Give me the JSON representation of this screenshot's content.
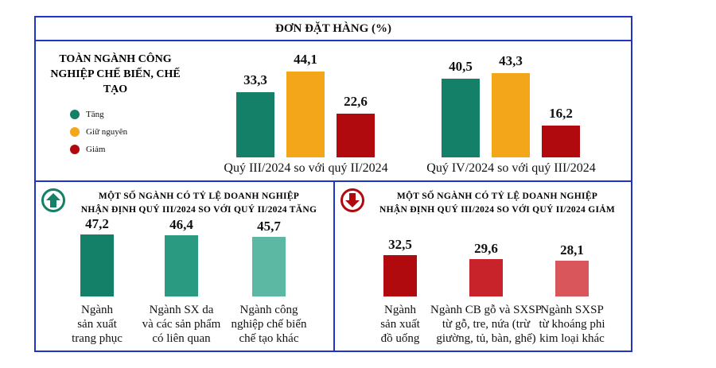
{
  "title": "ĐƠN ĐẶT HÀNG (%)",
  "colors": {
    "border": "#1f35c8",
    "increase": "#158068",
    "same": "#f4a61a",
    "decrease": "#b00a0e"
  },
  "chart_data": [
    {
      "type": "bar",
      "title": "TOÀN NGÀNH CÔNG NGHIỆP CHẾ BIẾN, CHẾ TẠO",
      "categories": [
        "Quý III/2024 so với quý II/2024",
        "Quý IV/2024 so với quý III/2024"
      ],
      "legend_position": "left",
      "series": [
        {
          "name": "Tăng",
          "values": [
            33.3,
            40.5
          ]
        },
        {
          "name": "Giữ nguyên",
          "values": [
            44.1,
            43.3
          ]
        },
        {
          "name": "Giảm",
          "values": [
            22.6,
            16.2
          ]
        }
      ],
      "value_labels": [
        [
          "33,3",
          "40,5"
        ],
        [
          "44,1",
          "43,3"
        ],
        [
          "22,6",
          "16,2"
        ]
      ]
    },
    {
      "type": "bar",
      "title": "MỘT SỐ NGÀNH CÓ TỶ LỆ DOANH NGHIỆP NHẬN ĐỊNH QUÝ III/2024 SO VỚI QUÝ II/2024 TĂNG",
      "title_lines": [
        "MỘT SỐ NGÀNH CÓ TỶ LỆ DOANH NGHIỆP",
        "NHẬN ĐỊNH QUÝ III/2024 SO VỚI QUÝ II/2024 TĂNG"
      ],
      "icon": "arrow-up-circle-icon",
      "categories": [
        [
          "Ngành",
          "sản xuất",
          "trang phục"
        ],
        [
          "Ngành SX da",
          "và các sản phẩm",
          "có liên quan"
        ],
        [
          "Ngành công",
          "nghiệp chế biến",
          "chế tạo khác"
        ]
      ],
      "values": [
        47.2,
        46.4,
        45.7
      ],
      "value_labels": [
        "47,2",
        "46,4",
        "45,7"
      ],
      "bar_colors": [
        "#158068",
        "#2a9a80",
        "#5cb8a2"
      ]
    },
    {
      "type": "bar",
      "title": "MỘT SỐ NGÀNH CÓ TỶ LỆ DOANH NGHIỆP NHẬN ĐỊNH QUÝ III/2024 SO VỚI QUÝ II/2024 GIẢM",
      "title_lines": [
        "MỘT SỐ NGÀNH CÓ TỶ LỆ DOANH NGHIỆP",
        "NHẬN ĐỊNH QUÝ III/2024 SO VỚI QUÝ II/2024 GIẢM"
      ],
      "icon": "arrow-down-circle-icon",
      "categories": [
        [
          "Ngành",
          "sản xuất",
          "đồ uống"
        ],
        [
          "Ngành CB gỗ và SXSP",
          "từ gỗ, tre, nứa (trừ",
          "giường, tủ, bàn, ghế)"
        ],
        [
          "Ngành SXSP",
          "từ khoáng phi",
          "kim loại khác"
        ]
      ],
      "values": [
        32.5,
        29.6,
        28.1
      ],
      "value_labels": [
        "32,5",
        "29,6",
        "28,1"
      ],
      "bar_colors": [
        "#b00a0e",
        "#c8232a",
        "#d9575b"
      ]
    }
  ]
}
